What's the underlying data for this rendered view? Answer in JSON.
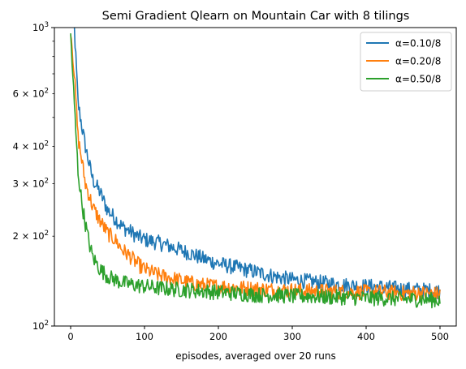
{
  "chart_data": {
    "type": "line",
    "title": "Semi Gradient Qlearn on Mountain Car with 8 tilings",
    "xlabel": "episodes, averaged over 20 runs",
    "ylabel": "",
    "xlim": [
      -22,
      522
    ],
    "ylim": [
      100,
      1000
    ],
    "yscale": "log",
    "grid": false,
    "legend_position": "top-right",
    "x_ticks": [
      {
        "value": 0,
        "label": "0"
      },
      {
        "value": 100,
        "label": "100"
      },
      {
        "value": 200,
        "label": "200"
      },
      {
        "value": 300,
        "label": "300"
      },
      {
        "value": 400,
        "label": "400"
      },
      {
        "value": 500,
        "label": "500"
      }
    ],
    "y_major_ticks": [
      {
        "value": 100,
        "base": "10",
        "exp": "2"
      },
      {
        "value": 1000,
        "base": "10",
        "exp": "3"
      }
    ],
    "y_minor_ticks": [
      {
        "value": 200,
        "coef": "2",
        "base": "10",
        "exp": "2"
      },
      {
        "value": 300,
        "coef": "3",
        "base": "10",
        "exp": "2"
      },
      {
        "value": 400,
        "coef": "4",
        "base": "10",
        "exp": "2"
      },
      {
        "value": 500,
        "coef": "",
        "base": "",
        "exp": ""
      },
      {
        "value": 600,
        "coef": "6",
        "base": "10",
        "exp": "2"
      },
      {
        "value": 700,
        "coef": "",
        "base": "",
        "exp": ""
      },
      {
        "value": 800,
        "coef": "",
        "base": "",
        "exp": ""
      },
      {
        "value": 900,
        "coef": "",
        "base": "",
        "exp": ""
      }
    ],
    "series": [
      {
        "name": "α=0.10/8",
        "color": "#1f77b4",
        "x": [
          0,
          5,
          10,
          15,
          20,
          25,
          30,
          40,
          50,
          60,
          70,
          80,
          90,
          100,
          120,
          140,
          160,
          180,
          200,
          220,
          240,
          260,
          280,
          300,
          325,
          350,
          375,
          400,
          425,
          450,
          475,
          500
        ],
        "y": [
          1100,
          1000,
          560,
          470,
          400,
          350,
          310,
          280,
          245,
          230,
          215,
          208,
          200,
          195,
          190,
          183,
          176,
          168,
          162,
          158,
          154,
          150,
          146,
          143,
          141,
          139,
          137,
          136,
          135,
          133,
          132,
          131
        ]
      },
      {
        "name": "α=0.20/8",
        "color": "#ff7f0e",
        "x": [
          0,
          5,
          10,
          15,
          20,
          25,
          30,
          40,
          50,
          60,
          70,
          80,
          90,
          100,
          120,
          140,
          160,
          180,
          200,
          220,
          240,
          260,
          280,
          300,
          325,
          350,
          375,
          400,
          425,
          450,
          475,
          500
        ],
        "y": [
          1000,
          700,
          430,
          360,
          300,
          275,
          250,
          225,
          205,
          195,
          180,
          172,
          162,
          155,
          148,
          144,
          140,
          137,
          136,
          135,
          134,
          133,
          132,
          132,
          131,
          131,
          130,
          130,
          130,
          129,
          129,
          128
        ]
      },
      {
        "name": "α=0.50/8",
        "color": "#2ca02c",
        "x": [
          0,
          5,
          10,
          15,
          20,
          25,
          30,
          40,
          50,
          60,
          70,
          80,
          90,
          100,
          120,
          140,
          160,
          180,
          200,
          220,
          240,
          260,
          280,
          300,
          325,
          350,
          375,
          400,
          425,
          450,
          475,
          500
        ],
        "y": [
          950,
          550,
          330,
          260,
          220,
          190,
          170,
          155,
          147,
          143,
          140,
          138,
          137,
          136,
          134,
          133,
          132,
          131,
          130,
          129,
          128,
          127,
          127,
          126,
          126,
          125,
          125,
          124,
          124,
          123,
          123,
          122
        ]
      }
    ]
  }
}
